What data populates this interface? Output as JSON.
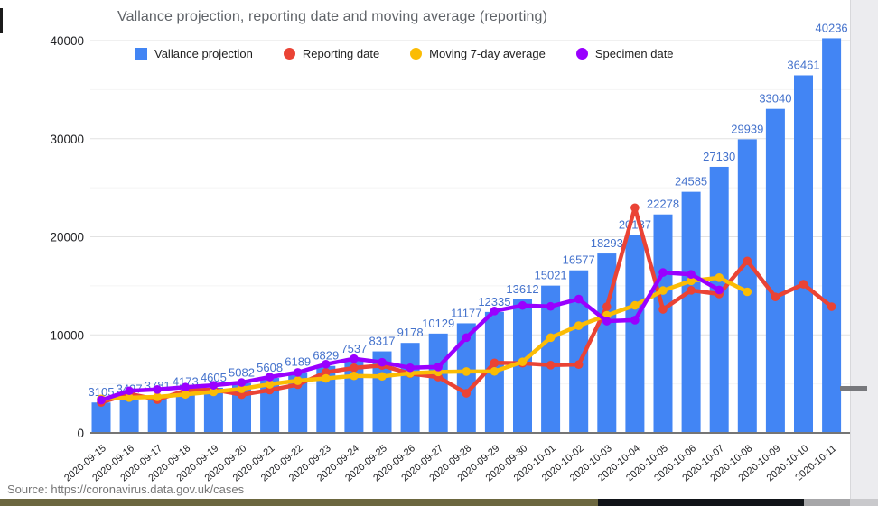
{
  "page": {
    "source_note": "Source: https://coronavirus.data.gov.uk/cases"
  },
  "chart_data": {
    "type": "combo-bar-line",
    "title": "Vallance projection, reporting date and moving average (reporting)",
    "legend_position": "top",
    "grid": true,
    "bar_value_labels": true,
    "categories": [
      "2020-09-15",
      "2020-09-16",
      "2020-09-17",
      "2020-09-18",
      "2020-09-19",
      "2020-09-20",
      "2020-09-21",
      "2020-09-22",
      "2020-09-23",
      "2020-09-24",
      "2020-09-25",
      "2020-09-26",
      "2020-09-27",
      "2020-09-28",
      "2020-09-29",
      "2020-09-30",
      "2020-10-01",
      "2020-10-02",
      "2020-10-03",
      "2020-10-04",
      "2020-10-05",
      "2020-10-06",
      "2020-10-07",
      "2020-10-08",
      "2020-10-09",
      "2020-10-10",
      "2020-10-11"
    ],
    "series": [
      {
        "name": "Vallance projection",
        "type": "bar",
        "marker": "square",
        "color": "#4285f4",
        "values": [
          3105,
          3427,
          3781,
          4173,
          4605,
          5082,
          5608,
          6189,
          6829,
          7537,
          8317,
          9178,
          10129,
          11177,
          12335,
          13612,
          15021,
          16577,
          18293,
          20187,
          22278,
          24585,
          27130,
          29939,
          33040,
          36461,
          40236
        ]
      },
      {
        "name": "Reporting date",
        "type": "line",
        "marker": "circle",
        "color": "#ea4335",
        "values": [
          3105,
          3991,
          3395,
          4322,
          4422,
          3899,
          4368,
          4926,
          6178,
          6634,
          6874,
          6042,
          5693,
          4044,
          7143,
          7108,
          6914,
          6968,
          12872,
          22961,
          12594,
          14542,
          14162,
          17540,
          13864,
          15166,
          12872
        ]
      },
      {
        "name": "Moving 7-day average",
        "type": "line",
        "marker": "circle",
        "color": "#fbbc04",
        "values": [
          3466,
          3598,
          3679,
          3929,
          4189,
          4501,
          4964,
          5329,
          5560,
          5816,
          5770,
          6087,
          6220,
          6260,
          6273,
          7249,
          9716,
          10937,
          11994,
          13002,
          14520,
          15505,
          15833,
          14391,
          null,
          null,
          null
        ]
      },
      {
        "name": "Specimen date",
        "type": "line",
        "marker": "circle",
        "color": "#9900ff",
        "values": [
          3350,
          4300,
          4430,
          4670,
          4860,
          5140,
          5700,
          6170,
          7010,
          7570,
          7200,
          6640,
          6730,
          9720,
          12430,
          12990,
          12900,
          13650,
          11400,
          11500,
          16360,
          16170,
          14580,
          null,
          null,
          null,
          null
        ]
      }
    ],
    "y_axis": {
      "min": 0,
      "max": 40000,
      "tick_step": 10000,
      "minor_step": 5000,
      "tick_labels": [
        "0",
        "10000",
        "20000",
        "30000",
        "40000"
      ]
    },
    "x_axis": {
      "label_rotation": -40
    },
    "colors": {
      "bar_label": "#4472cc",
      "title_text": "#5f6368",
      "axis_text": "#202124",
      "gridline": "#e2e2e2",
      "minor_gridline": "#f4f4f4",
      "baseline": "#757575",
      "source_text": "#757575"
    }
  },
  "chrome": {
    "bottom_strip_segments": [
      {
        "color": "#6c673f"
      },
      {
        "color": "#111418"
      },
      {
        "color": "#a6a6a8"
      },
      {
        "color": "#c9c9cc"
      }
    ]
  }
}
